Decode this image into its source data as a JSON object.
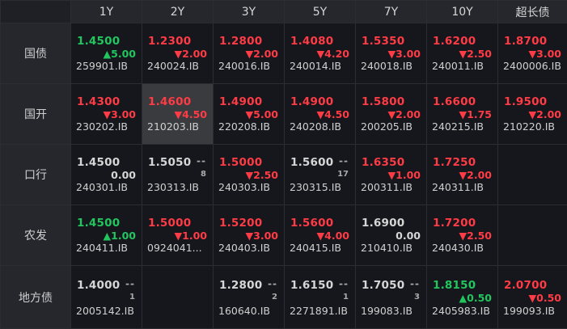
{
  "colors": {
    "up": "#ff3b45",
    "down": "#22c55e",
    "flat": "#d6d6d6"
  },
  "columns": [
    "1Y",
    "2Y",
    "3Y",
    "5Y",
    "7Y",
    "10Y",
    "超长债"
  ],
  "rows": [
    {
      "label": "国债",
      "cells": [
        {
          "price": "1.4500",
          "change": "▲5.00",
          "code": "259901.IB",
          "dir": "down"
        },
        {
          "price": "1.2300",
          "change": "▼2.00",
          "code": "240024.IB",
          "dir": "up"
        },
        {
          "price": "1.2800",
          "change": "▼2.00",
          "code": "240016.IB",
          "dir": "up"
        },
        {
          "price": "1.4080",
          "change": "▼4.20",
          "code": "240014.IB",
          "dir": "up"
        },
        {
          "price": "1.5350",
          "change": "▼3.00",
          "code": "240018.IB",
          "dir": "up"
        },
        {
          "price": "1.6200",
          "change": "▼2.50",
          "code": "240011.IB",
          "dir": "up"
        },
        {
          "price": "1.8700",
          "change": "▼3.00",
          "code": "2400006.IB",
          "dir": "up"
        }
      ]
    },
    {
      "label": "国开",
      "cells": [
        {
          "price": "1.4300",
          "change": "▼3.00",
          "code": "230202.IB",
          "dir": "up"
        },
        {
          "price": "1.4600",
          "change": "▼4.50",
          "code": "210203.IB",
          "dir": "up",
          "selected": true
        },
        {
          "price": "1.4900",
          "change": "▼5.00",
          "code": "220208.IB",
          "dir": "up"
        },
        {
          "price": "1.4900",
          "change": "▼4.50",
          "code": "240208.IB",
          "dir": "up"
        },
        {
          "price": "1.5800",
          "change": "▼2.00",
          "code": "200205.IB",
          "dir": "up"
        },
        {
          "price": "1.6600",
          "change": "▼1.75",
          "code": "240215.IB",
          "dir": "up"
        },
        {
          "price": "1.9500",
          "change": "▼2.00",
          "code": "210220.IB",
          "dir": "up"
        }
      ]
    },
    {
      "label": "口行",
      "cells": [
        {
          "price": "1.4500",
          "change": "0.00",
          "code": "240301.IB",
          "dir": "flat"
        },
        {
          "price": "1.5050",
          "change": "",
          "dash": "--",
          "count": "8",
          "code": "230313.IB",
          "dir": "flat"
        },
        {
          "price": "1.5000",
          "change": "▼2.50",
          "code": "240303.IB",
          "dir": "up"
        },
        {
          "price": "1.5600",
          "change": "",
          "dash": "--",
          "count": "17",
          "code": "230315.IB",
          "dir": "flat"
        },
        {
          "price": "1.6350",
          "change": "▼1.00",
          "code": "200311.IB",
          "dir": "up"
        },
        {
          "price": "1.7250",
          "change": "▼2.00",
          "code": "240311.IB",
          "dir": "up"
        },
        {
          "empty": true
        }
      ]
    },
    {
      "label": "农发",
      "cells": [
        {
          "price": "1.4500",
          "change": "▲1.00",
          "code": "240411.IB",
          "dir": "down"
        },
        {
          "price": "1.5000",
          "change": "▼1.00",
          "code": "0924041...",
          "dir": "up"
        },
        {
          "price": "1.5200",
          "change": "▼3.00",
          "code": "240403.IB",
          "dir": "up"
        },
        {
          "price": "1.5600",
          "change": "▼4.00",
          "code": "240415.IB",
          "dir": "up"
        },
        {
          "price": "1.6900",
          "change": "0.00",
          "code": "210410.IB",
          "dir": "flat"
        },
        {
          "price": "1.7200",
          "change": "▼2.50",
          "code": "240430.IB",
          "dir": "up"
        },
        {
          "empty": true
        }
      ]
    },
    {
      "label": "地方债",
      "cells": [
        {
          "price": "1.4000",
          "change": "",
          "dash": "--",
          "count": "1",
          "code": "2005142.IB",
          "dir": "flat"
        },
        {
          "empty": true
        },
        {
          "price": "1.2800",
          "change": "",
          "dash": "--",
          "count": "2",
          "code": "160640.IB",
          "dir": "flat"
        },
        {
          "price": "1.6150",
          "change": "",
          "dash": "--",
          "count": "1",
          "code": "2271891.IB",
          "dir": "flat"
        },
        {
          "price": "1.7050",
          "change": "",
          "dash": "--",
          "count": "3",
          "code": "199083.IB",
          "dir": "flat"
        },
        {
          "price": "1.8150",
          "change": "▲0.50",
          "code": "2405983.IB",
          "dir": "down"
        },
        {
          "price": "2.0700",
          "change": "▼0.50",
          "code": "199093.IB",
          "dir": "up"
        }
      ]
    }
  ]
}
